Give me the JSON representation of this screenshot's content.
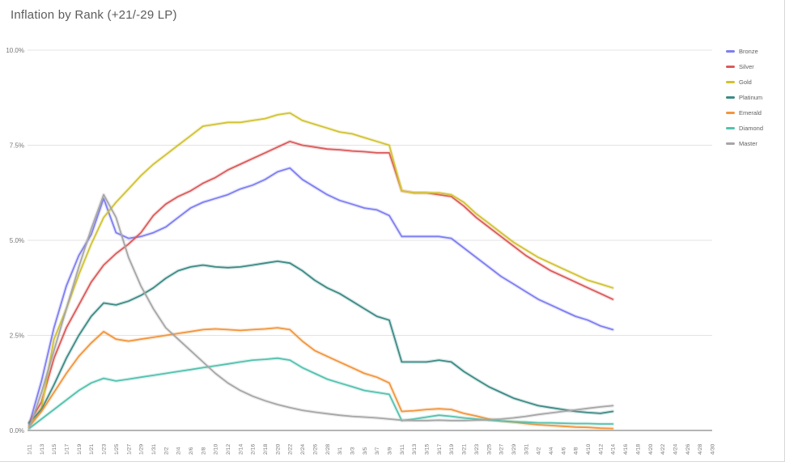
{
  "title": "Inflation by Rank (+21/-29 LP)",
  "chart_data": {
    "type": "line",
    "title": "Inflation by Rank (+21/-29 LP)",
    "xlabel": "",
    "ylabel": "",
    "ylim": [
      0,
      10
    ],
    "y_unit": "%",
    "grid": true,
    "legend_position": "right",
    "y_tick_labels": [
      "0.0%",
      "2.5%",
      "5.0%",
      "7.5%",
      "10.0%"
    ],
    "y_tick_values": [
      0,
      2.5,
      5,
      7.5,
      10
    ],
    "categories": [
      "1/11",
      "1/13",
      "1/15",
      "1/17",
      "1/19",
      "1/21",
      "1/23",
      "1/25",
      "1/27",
      "1/29",
      "1/31",
      "2/2",
      "2/4",
      "2/6",
      "2/8",
      "2/10",
      "2/12",
      "2/14",
      "2/16",
      "2/18",
      "2/20",
      "2/22",
      "2/24",
      "2/26",
      "2/28",
      "3/1",
      "3/3",
      "3/5",
      "3/7",
      "3/9",
      "3/11",
      "3/13",
      "3/15",
      "3/17",
      "3/19",
      "3/21",
      "3/23",
      "3/25",
      "3/27",
      "3/29",
      "3/31",
      "4/2",
      "4/4",
      "4/6",
      "4/8",
      "4/10",
      "4/12",
      "4/14",
      "4/16",
      "4/18",
      "4/20",
      "4/22",
      "4/24",
      "4/26",
      "4/28",
      "4/30"
    ],
    "x_data": [
      "1/11",
      "1/13",
      "1/15",
      "1/17",
      "1/19",
      "1/21",
      "1/23",
      "1/25",
      "1/27",
      "1/29",
      "1/31",
      "2/2",
      "2/4",
      "2/6",
      "2/8",
      "2/10",
      "2/12",
      "2/14",
      "2/16",
      "2/18",
      "2/20",
      "2/22",
      "2/24",
      "2/26",
      "2/28",
      "3/1",
      "3/3",
      "3/5",
      "3/7",
      "3/9",
      "3/11",
      "3/13",
      "3/15",
      "3/17",
      "3/19",
      "3/21",
      "3/23",
      "3/25",
      "3/27",
      "3/29",
      "3/31",
      "4/2",
      "4/4",
      "4/6",
      "4/8",
      "4/10",
      "4/12",
      "4/14"
    ],
    "series": [
      {
        "name": "Bronze",
        "color": "#7e7ef2",
        "values": [
          0.15,
          1.3,
          2.7,
          3.8,
          4.6,
          5.15,
          6.1,
          5.2,
          5.05,
          5.1,
          5.2,
          5.35,
          5.6,
          5.85,
          6.0,
          6.1,
          6.2,
          6.35,
          6.45,
          6.6,
          6.8,
          6.9,
          6.6,
          6.4,
          6.2,
          6.05,
          5.95,
          5.85,
          5.8,
          5.65,
          5.1,
          5.1,
          5.1,
          5.1,
          5.05,
          4.8,
          4.55,
          4.3,
          4.05,
          3.85,
          3.65,
          3.45,
          3.3,
          3.15,
          3.0,
          2.9,
          2.75,
          2.65
        ]
      },
      {
        "name": "Silver",
        "color": "#db5a5a",
        "values": [
          0.2,
          0.75,
          1.9,
          2.7,
          3.3,
          3.9,
          4.35,
          4.65,
          4.9,
          5.2,
          5.65,
          5.95,
          6.15,
          6.3,
          6.5,
          6.65,
          6.85,
          7.0,
          7.15,
          7.3,
          7.45,
          7.6,
          7.5,
          7.45,
          7.4,
          7.38,
          7.35,
          7.33,
          7.3,
          7.3,
          6.3,
          6.25,
          6.25,
          6.2,
          6.15,
          5.9,
          5.6,
          5.35,
          5.1,
          4.85,
          4.6,
          4.4,
          4.2,
          4.05,
          3.9,
          3.75,
          3.6,
          3.45
        ]
      },
      {
        "name": "Gold",
        "color": "#d1c232",
        "values": [
          0.1,
          0.6,
          2.4,
          3.2,
          4.1,
          4.9,
          5.6,
          6.0,
          6.35,
          6.7,
          7.0,
          7.25,
          7.5,
          7.75,
          8.0,
          8.05,
          8.1,
          8.1,
          8.15,
          8.2,
          8.3,
          8.35,
          8.15,
          8.05,
          7.95,
          7.85,
          7.8,
          7.7,
          7.6,
          7.5,
          6.3,
          6.25,
          6.25,
          6.25,
          6.2,
          6.0,
          5.7,
          5.45,
          5.2,
          4.95,
          4.75,
          4.55,
          4.4,
          4.25,
          4.1,
          3.95,
          3.85,
          3.75
        ]
      },
      {
        "name": "Platinum",
        "color": "#3d8a85",
        "values": [
          0.2,
          0.55,
          1.2,
          1.9,
          2.5,
          3.0,
          3.35,
          3.3,
          3.4,
          3.55,
          3.75,
          4.0,
          4.2,
          4.3,
          4.35,
          4.3,
          4.28,
          4.3,
          4.35,
          4.4,
          4.45,
          4.4,
          4.2,
          3.95,
          3.75,
          3.6,
          3.4,
          3.2,
          3.0,
          2.9,
          1.8,
          1.8,
          1.8,
          1.85,
          1.8,
          1.55,
          1.35,
          1.15,
          1.0,
          0.85,
          0.75,
          0.65,
          0.6,
          0.55,
          0.5,
          0.47,
          0.45,
          0.5
        ]
      },
      {
        "name": "Emerald",
        "color": "#f2953d",
        "values": [
          0.1,
          0.5,
          1.0,
          1.5,
          1.95,
          2.3,
          2.6,
          2.4,
          2.35,
          2.4,
          2.45,
          2.5,
          2.55,
          2.6,
          2.65,
          2.67,
          2.65,
          2.63,
          2.65,
          2.67,
          2.7,
          2.65,
          2.35,
          2.1,
          1.95,
          1.8,
          1.65,
          1.5,
          1.4,
          1.25,
          0.5,
          0.52,
          0.55,
          0.57,
          0.55,
          0.45,
          0.38,
          0.3,
          0.25,
          0.22,
          0.18,
          0.15,
          0.13,
          0.11,
          0.09,
          0.08,
          0.06,
          0.05
        ]
      },
      {
        "name": "Diamond",
        "color": "#54c1ae",
        "values": [
          0.05,
          0.3,
          0.55,
          0.8,
          1.05,
          1.25,
          1.37,
          1.3,
          1.35,
          1.4,
          1.45,
          1.5,
          1.55,
          1.6,
          1.65,
          1.7,
          1.75,
          1.8,
          1.85,
          1.87,
          1.9,
          1.85,
          1.65,
          1.5,
          1.35,
          1.25,
          1.15,
          1.05,
          1.0,
          0.95,
          0.26,
          0.3,
          0.35,
          0.4,
          0.37,
          0.33,
          0.3,
          0.27,
          0.25,
          0.23,
          0.22,
          0.2,
          0.2,
          0.19,
          0.18,
          0.18,
          0.17,
          0.17
        ]
      },
      {
        "name": "Master",
        "color": "#a6a6a6",
        "values": [
          0.05,
          1.0,
          2.1,
          3.2,
          4.3,
          5.3,
          6.2,
          5.6,
          4.55,
          3.8,
          3.2,
          2.7,
          2.4,
          2.1,
          1.8,
          1.5,
          1.25,
          1.05,
          0.9,
          0.78,
          0.68,
          0.6,
          0.53,
          0.48,
          0.44,
          0.4,
          0.37,
          0.35,
          0.33,
          0.3,
          0.27,
          0.26,
          0.26,
          0.27,
          0.26,
          0.26,
          0.27,
          0.28,
          0.3,
          0.33,
          0.37,
          0.42,
          0.46,
          0.5,
          0.54,
          0.58,
          0.62,
          0.65
        ]
      }
    ]
  },
  "style_colors": {
    "gridline": "#e3e3e3",
    "axis_line": "#b5b5b5",
    "tick_text": "#757575",
    "title_text": "#5c5c5c"
  }
}
